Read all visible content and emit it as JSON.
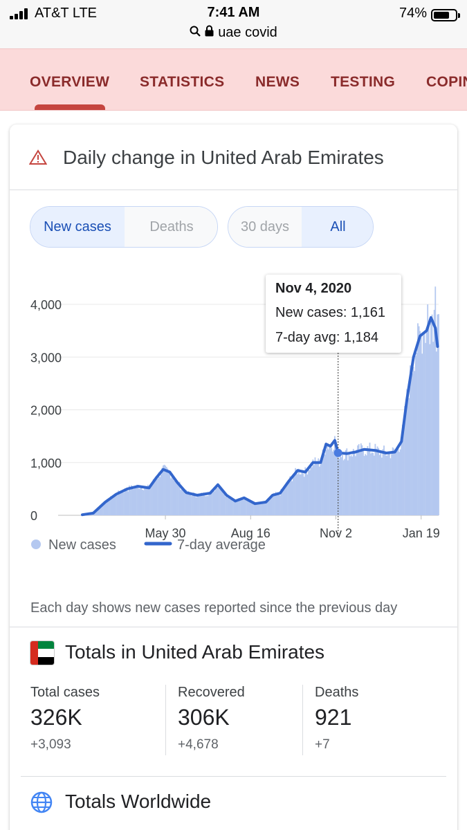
{
  "status_bar": {
    "carrier": "AT&T   LTE",
    "time": "7:41 AM",
    "battery_pct": "74%",
    "battery_level": 0.74,
    "url": "uae covid"
  },
  "tabs": [
    {
      "label": "OVERVIEW",
      "active": true
    },
    {
      "label": "STATISTICS",
      "active": false
    },
    {
      "label": "NEWS",
      "active": false
    },
    {
      "label": "TESTING",
      "active": false
    },
    {
      "label": "COPIN",
      "active": false
    }
  ],
  "card": {
    "title": "Daily change in United Arab Emirates",
    "metric_toggle": [
      {
        "label": "New cases",
        "selected": true
      },
      {
        "label": "Deaths",
        "selected": false
      }
    ],
    "range_toggle": [
      {
        "label": "30 days",
        "selected": false
      },
      {
        "label": "All",
        "selected": true
      }
    ],
    "tooltip": {
      "date": "Nov 4, 2020",
      "new_cases": "New cases: 1,161",
      "avg": "7-day avg: 1,184"
    },
    "footnote": "Each day shows new cases reported since the previous day"
  },
  "colors": {
    "bar": "#b4c8f0",
    "line": "#3366cc",
    "tab_text": "#8a2b2b",
    "tab_bg": "#fbdada",
    "accent": "#c5453f"
  },
  "chart_data": {
    "type": "bar",
    "x_tick_labels": [
      "May 30",
      "Aug 16",
      "Nov 2",
      "Jan 19"
    ],
    "y_ticks": [
      0,
      1000,
      2000,
      3000,
      4000
    ],
    "y_tick_labels": [
      "0",
      "1,000",
      "2,000",
      "3,000",
      "4,000"
    ],
    "ylim": [
      0,
      4000
    ],
    "legend_position": "bottom-left",
    "grid": true,
    "series": [
      {
        "name": "New cases",
        "style": "bars"
      },
      {
        "name": "7-day average",
        "style": "line"
      }
    ],
    "avg_points": [
      [
        "2020-03-15",
        10
      ],
      [
        "2020-03-25",
        40
      ],
      [
        "2020-04-05",
        250
      ],
      [
        "2020-04-15",
        400
      ],
      [
        "2020-04-25",
        500
      ],
      [
        "2020-05-05",
        550
      ],
      [
        "2020-05-15",
        520
      ],
      [
        "2020-05-22",
        720
      ],
      [
        "2020-05-28",
        870
      ],
      [
        "2020-06-03",
        820
      ],
      [
        "2020-06-10",
        620
      ],
      [
        "2020-06-18",
        430
      ],
      [
        "2020-06-28",
        380
      ],
      [
        "2020-07-10",
        420
      ],
      [
        "2020-07-17",
        580
      ],
      [
        "2020-07-25",
        380
      ],
      [
        "2020-08-02",
        270
      ],
      [
        "2020-08-10",
        330
      ],
      [
        "2020-08-20",
        220
      ],
      [
        "2020-08-30",
        250
      ],
      [
        "2020-09-05",
        380
      ],
      [
        "2020-09-12",
        420
      ],
      [
        "2020-09-20",
        650
      ],
      [
        "2020-09-28",
        850
      ],
      [
        "2020-10-05",
        820
      ],
      [
        "2020-10-12",
        1000
      ],
      [
        "2020-10-19",
        1000
      ],
      [
        "2020-10-24",
        1350
      ],
      [
        "2020-10-28",
        1310
      ],
      [
        "2020-11-01",
        1420
      ],
      [
        "2020-11-04",
        1184
      ],
      [
        "2020-11-12",
        1170
      ],
      [
        "2020-11-20",
        1200
      ],
      [
        "2020-11-28",
        1250
      ],
      [
        "2020-12-08",
        1230
      ],
      [
        "2020-12-18",
        1180
      ],
      [
        "2020-12-26",
        1200
      ],
      [
        "2021-01-01",
        1400
      ],
      [
        "2021-01-06",
        2200
      ],
      [
        "2021-01-12",
        3000
      ],
      [
        "2021-01-18",
        3400
      ],
      [
        "2021-01-24",
        3500
      ],
      [
        "2021-01-28",
        3750
      ],
      [
        "2021-02-01",
        3550
      ],
      [
        "2021-02-03",
        3200
      ]
    ],
    "x_start": "2020-03-15",
    "x_end": "2021-02-04",
    "highlight": {
      "date": "2020-11-04",
      "new_cases": 1161,
      "avg": 1184
    }
  },
  "legend": {
    "new_cases": "New cases",
    "avg": "7-day average"
  },
  "totals_uae": {
    "title": "Totals in United Arab Emirates",
    "stats": [
      {
        "label": "Total cases",
        "value": "326K",
        "change": "+3,093"
      },
      {
        "label": "Recovered",
        "value": "306K",
        "change": "+4,678"
      },
      {
        "label": "Deaths",
        "value": "921",
        "change": "+7"
      }
    ]
  },
  "totals_world": {
    "title": "Totals Worldwide"
  }
}
